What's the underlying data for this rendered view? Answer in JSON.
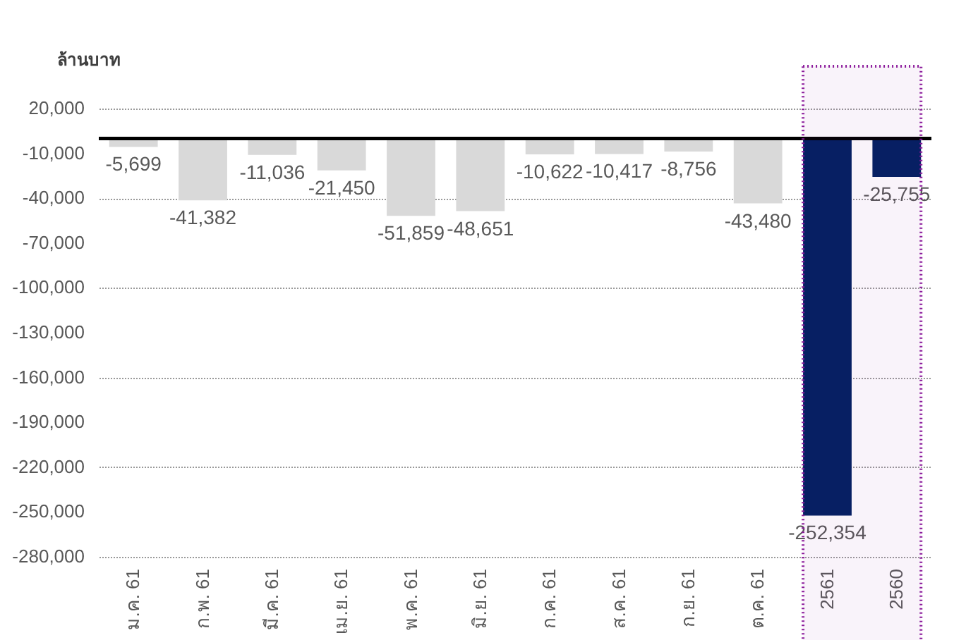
{
  "chart_data": {
    "type": "bar",
    "ylabel": "ล้านบาท",
    "categories": [
      "ม.ค. 61",
      "ก.พ. 61",
      "มี.ค. 61",
      "เม.ย. 61",
      "พ.ค. 61",
      "มิ.ย. 61",
      "ก.ค. 61",
      "ส.ค. 61",
      "ก.ย. 61",
      "ต.ค. 61",
      "2561",
      "2560"
    ],
    "values": [
      -5699,
      -41382,
      -11036,
      -21450,
      -51859,
      -48651,
      -10622,
      -10417,
      -8756,
      -43480,
      -252354,
      -25755
    ],
    "value_labels": [
      "-5,699",
      "-41,382",
      "-11,036",
      "-21,450",
      "-51,859",
      "-48,651",
      "-10,622",
      "-10,417",
      "-8,756",
      "-43,480",
      "-252,354",
      "-25,755"
    ],
    "colors": [
      "#d9d9d9",
      "#d9d9d9",
      "#d9d9d9",
      "#d9d9d9",
      "#d9d9d9",
      "#d9d9d9",
      "#d9d9d9",
      "#d9d9d9",
      "#d9d9d9",
      "#d9d9d9",
      "#002060",
      "#002060"
    ],
    "ylim": [
      -280000,
      20000
    ],
    "yticks": [
      {
        "value": 20000,
        "label": "20,000"
      },
      {
        "value": -10000,
        "label": "-10,000"
      },
      {
        "value": -40000,
        "label": "-40,000"
      },
      {
        "value": -70000,
        "label": "-70,000"
      },
      {
        "value": -100000,
        "label": "-100,000"
      },
      {
        "value": -130000,
        "label": "-130,000"
      },
      {
        "value": -160000,
        "label": "-160,000"
      },
      {
        "value": -190000,
        "label": "-190,000"
      },
      {
        "value": -220000,
        "label": "-220,000"
      },
      {
        "value": -250000,
        "label": "-250,000"
      },
      {
        "value": -280000,
        "label": "-280,000"
      }
    ],
    "grid": "y",
    "ref_lines": [
      {
        "axis": "y",
        "value": 0,
        "color": "#000000"
      }
    ],
    "bands": [
      {
        "axis": "x",
        "from": "2561",
        "to": "2560",
        "color": "#8b1a9b"
      }
    ]
  }
}
